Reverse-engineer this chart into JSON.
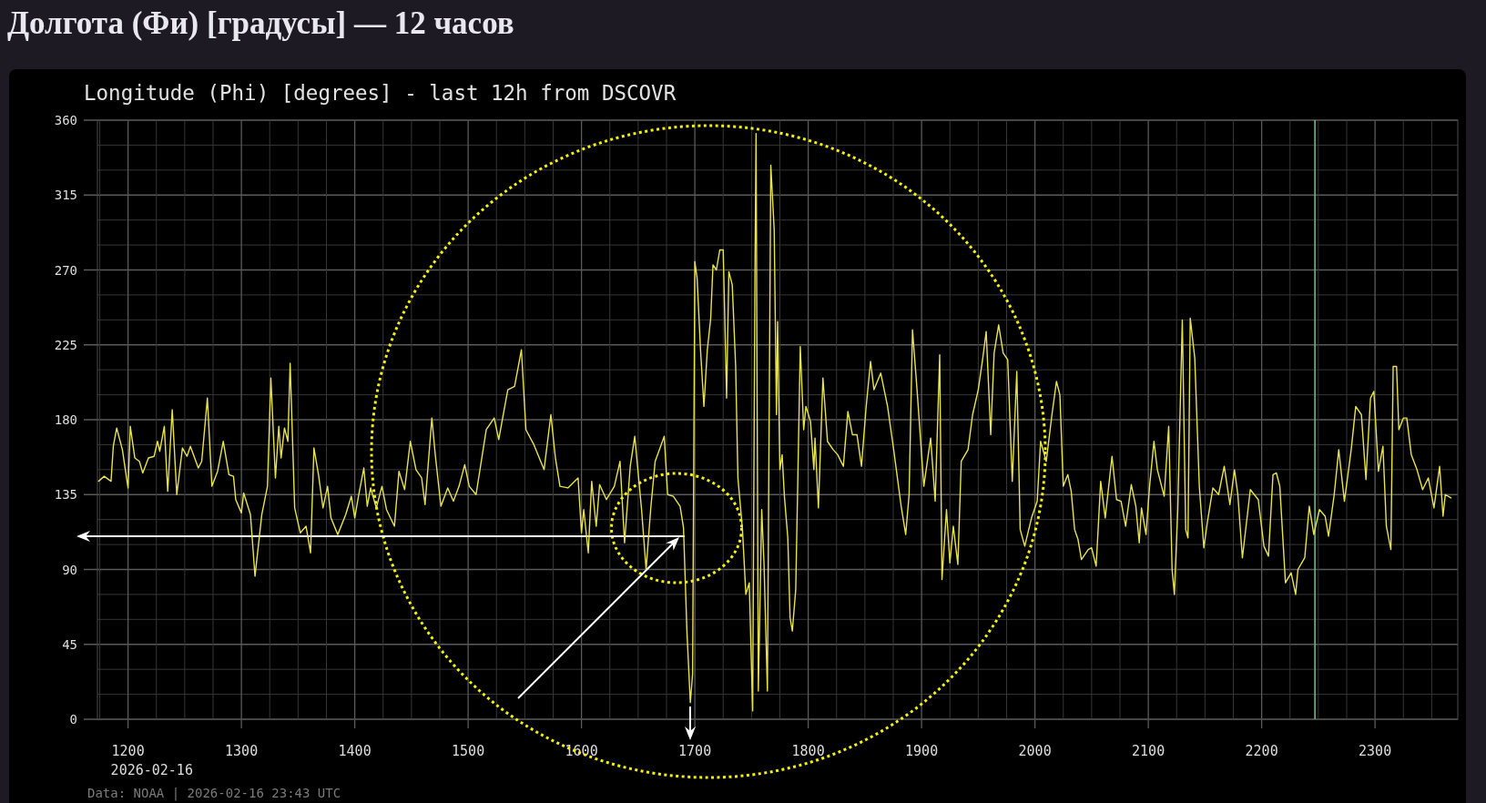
{
  "chart_data": {
    "type": "line",
    "title": "Долгота (Фи) [градусы] — 12 часов",
    "subtitle": "Longitude (Phi) [degrees] - last 12h from DSCOVR",
    "annotations": [
      "2026-02-16",
      "Data: NOAA | 2026-02-16 23:43 UTC"
    ],
    "xlim": [
      1173,
      2373
    ],
    "xticks": [
      {
        "value": 1175,
        "label": null
      },
      1200,
      {
        "value": 1225,
        "label": null
      },
      {
        "value": 1250,
        "label": null
      },
      {
        "value": 1275,
        "label": null
      },
      1300,
      {
        "value": 1325,
        "label": null
      },
      {
        "value": 1350,
        "label": null
      },
      {
        "value": 1375,
        "label": null
      },
      1400,
      {
        "value": 1425,
        "label": null
      },
      {
        "value": 1450,
        "label": null
      },
      {
        "value": 1475,
        "label": null
      },
      1500,
      {
        "value": 1525,
        "label": null
      },
      {
        "value": 1550,
        "label": null
      },
      {
        "value": 1575,
        "label": null
      },
      1600,
      {
        "value": 1625,
        "label": null
      },
      {
        "value": 1650,
        "label": null
      },
      {
        "value": 1675,
        "label": null
      },
      1700,
      {
        "value": 1725,
        "label": null
      },
      {
        "value": 1750,
        "label": null
      },
      {
        "value": 1775,
        "label": null
      },
      1800,
      {
        "value": 1825,
        "label": null
      },
      {
        "value": 1850,
        "label": null
      },
      {
        "value": 1875,
        "label": null
      },
      1900,
      {
        "value": 1925,
        "label": null
      },
      {
        "value": 1950,
        "label": null
      },
      {
        "value": 1975,
        "label": null
      },
      2000,
      {
        "value": 2025,
        "label": null
      },
      {
        "value": 2050,
        "label": null
      },
      {
        "value": 2075,
        "label": null
      },
      2100,
      {
        "value": 2125,
        "label": null
      },
      {
        "value": 2150,
        "label": null
      },
      {
        "value": 2175,
        "label": null
      },
      2200,
      {
        "value": 2225,
        "label": null
      },
      {
        "value": 2250,
        "label": null
      },
      {
        "value": 2275,
        "label": null
      },
      2300,
      {
        "value": 2325,
        "label": null
      },
      {
        "value": 2350,
        "label": null
      }
    ],
    "ylim": [
      0,
      360
    ],
    "yticks": [
      0,
      {
        "value": 15,
        "label": null
      },
      {
        "value": 30,
        "label": null
      },
      45,
      {
        "value": 60,
        "label": null
      },
      {
        "value": 75,
        "label": null
      },
      90,
      {
        "value": 105,
        "label": null
      },
      {
        "value": 120,
        "label": null
      },
      135,
      {
        "value": 150,
        "label": null
      },
      {
        "value": 165,
        "label": null
      },
      180,
      {
        "value": 195,
        "label": null
      },
      {
        "value": 210,
        "label": null
      },
      225,
      {
        "value": 240,
        "label": null
      },
      {
        "value": 255,
        "label": null
      },
      270,
      {
        "value": 285,
        "label": null
      },
      {
        "value": 300,
        "label": null
      },
      315,
      {
        "value": 330,
        "label": null
      },
      {
        "value": 345,
        "label": null
      },
      360
    ],
    "grid": true,
    "ref_lines": [
      {
        "axis": "x",
        "value": 2247,
        "color": "#6ab987"
      }
    ],
    "x": [
      1174,
      1179,
      1185,
      1187,
      1190,
      1195,
      1200,
      1202,
      1206,
      1210,
      1213,
      1218,
      1223,
      1226,
      1228,
      1232,
      1235,
      1239,
      1243,
      1248,
      1252,
      1255,
      1262,
      1265,
      1270,
      1274,
      1279,
      1284,
      1289,
      1293,
      1295,
      1300,
      1302,
      1308,
      1312,
      1318,
      1323,
      1326,
      1330,
      1333,
      1335,
      1338,
      1341,
      1343,
      1347,
      1352,
      1357,
      1361,
      1364,
      1368,
      1372,
      1376,
      1379,
      1385,
      1392,
      1397,
      1400,
      1403,
      1408,
      1411,
      1414,
      1419,
      1424,
      1428,
      1435,
      1439,
      1444,
      1449,
      1454,
      1459,
      1462,
      1468,
      1471,
      1476,
      1482,
      1487,
      1492,
      1497,
      1501,
      1507,
      1516,
      1523,
      1527,
      1535,
      1541,
      1547,
      1551,
      1558,
      1567,
      1573,
      1577,
      1581,
      1588,
      1597,
      1600,
      1602,
      1606,
      1609,
      1613,
      1616,
      1622,
      1629,
      1634,
      1638,
      1643,
      1647,
      1653,
      1657,
      1661,
      1665,
      1673,
      1676,
      1681,
      1687,
      1690,
      1693,
      1696,
      1698,
      1700,
      1702,
      1705,
      1708,
      1711,
      1714,
      1716,
      1719,
      1722,
      1725,
      1728,
      1730,
      1733,
      1736,
      1738,
      1742,
      1745,
      1748,
      1751,
      1753,
      1754,
      1756,
      1759,
      1761,
      1764,
      1767,
      1770,
      1772,
      1773,
      1775,
      1777,
      1779,
      1782,
      1784,
      1786,
      1789,
      1791,
      1793,
      1796,
      1798,
      1802,
      1805,
      1806,
      1809,
      1813,
      1817,
      1822,
      1826,
      1831,
      1835,
      1839,
      1843,
      1847,
      1851,
      1855,
      1858,
      1864,
      1870,
      1875,
      1882,
      1886,
      1889,
      1892,
      1896,
      1902,
      1908,
      1912,
      1916,
      1918,
      1922,
      1925,
      1928,
      1932,
      1935,
      1941,
      1945,
      1950,
      1954,
      1957,
      1961,
      1964,
      1968,
      1972,
      1976,
      1980,
      1984,
      1987,
      1991,
      1997,
      2002,
      2005,
      2010,
      2015,
      2019,
      2022,
      2025,
      2029,
      2032,
      2035,
      2038,
      2041,
      2047,
      2050,
      2054,
      2058,
      2062,
      2068,
      2072,
      2076,
      2080,
      2085,
      2089,
      2092,
      2094,
      2098,
      2101,
      2105,
      2108,
      2114,
      2118,
      2121,
      2123,
      2126,
      2130,
      2133,
      2135,
      2137,
      2141,
      2145,
      2149,
      2152,
      2157,
      2162,
      2167,
      2172,
      2176,
      2179,
      2183,
      2190,
      2197,
      2202,
      2206,
      2210,
      2213,
      2216,
      2221,
      2226,
      2230,
      2232,
      2238,
      2242,
      2246,
      2251,
      2256,
      2259,
      2264,
      2268,
      2273,
      2279,
      2283,
      2288,
      2292,
      2296,
      2299,
      2303,
      2307,
      2310,
      2314,
      2316,
      2319,
      2321,
      2325,
      2328,
      2332,
      2337,
      2342,
      2347,
      2352,
      2357,
      2360,
      2362,
      2367
    ],
    "series": [
      {
        "color": "#e8e24c",
        "values": [
          143,
          146,
          143,
          164,
          175,
          162,
          139,
          176,
          157,
          155,
          148,
          157,
          158,
          167,
          161,
          176,
          137,
          186,
          135,
          163,
          158,
          164,
          151,
          155,
          193,
          140,
          149,
          167,
          147,
          146,
          132,
          124,
          136,
          123,
          86,
          123,
          140,
          205,
          145,
          176,
          157,
          175,
          167,
          214,
          127,
          112,
          116,
          100,
          163,
          147,
          127,
          140,
          121,
          111,
          123,
          134,
          121,
          133,
          151,
          128,
          139,
          127,
          140,
          126,
          116,
          149,
          138,
          167,
          150,
          145,
          129,
          181,
          159,
          128,
          139,
          131,
          140,
          153,
          140,
          135,
          174,
          181,
          168,
          198,
          200,
          222,
          174,
          165,
          150,
          183,
          157,
          140,
          139,
          145,
          112,
          126,
          100,
          143,
          116,
          141,
          132,
          140,
          155,
          106,
          152,
          170,
          126,
          90,
          126,
          155,
          170,
          135,
          134,
          128,
          115,
          53,
          10,
          27,
          275,
          265,
          222,
          188,
          222,
          241,
          273,
          270,
          282,
          282,
          193,
          269,
          261,
          212,
          145,
          114,
          75,
          82,
          5,
          265,
          352,
          17,
          126,
          94,
          17,
          333,
          294,
          183,
          239,
          150,
          159,
          134,
          109,
          61,
          53,
          78,
          150,
          224,
          174,
          188,
          179,
          150,
          169,
          127,
          205,
          167,
          162,
          159,
          152,
          185,
          171,
          171,
          152,
          187,
          215,
          198,
          208,
          188,
          164,
          128,
          111,
          135,
          234,
          198,
          140,
          169,
          131,
          219,
          84,
          126,
          94,
          116,
          93,
          155,
          162,
          183,
          198,
          217,
          233,
          171,
          220,
          237,
          220,
          216,
          143,
          209,
          114,
          104,
          121,
          131,
          167,
          155,
          183,
          203,
          195,
          140,
          147,
          137,
          114,
          108,
          96,
          102,
          103,
          92,
          143,
          121,
          158,
          132,
          131,
          116,
          141,
          128,
          106,
          127,
          111,
          139,
          167,
          150,
          134,
          176,
          90,
          75,
          126,
          240,
          114,
          109,
          241,
          217,
          140,
          103,
          118,
          139,
          135,
          152,
          129,
          150,
          135,
          97,
          138,
          132,
          104,
          98,
          147,
          148,
          140,
          82,
          88,
          75,
          90,
          97,
          128,
          111,
          126,
          122,
          110,
          135,
          162,
          131,
          162,
          188,
          183,
          144,
          193,
          197,
          149,
          164,
          116,
          102,
          212,
          212,
          174,
          181,
          181,
          159,
          150,
          138,
          145,
          127,
          152,
          122,
          135,
          133
        ]
      }
    ]
  }
}
